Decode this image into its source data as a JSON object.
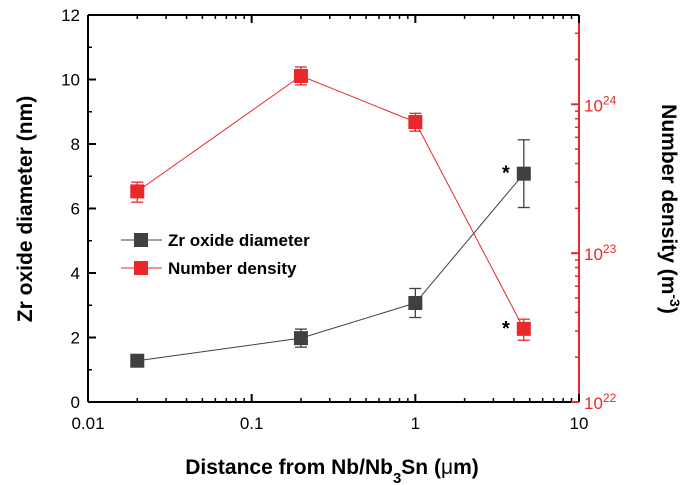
{
  "chart_data": {
    "type": "line",
    "xlabel_parts": [
      "Distance from Nb/Nb",
      "3",
      "Sn (",
      "μ",
      "m)"
    ],
    "ylabel_left": "Zr oxide diameter (nm)",
    "ylabel_right_parts": [
      "Number density (m",
      "-3",
      ")"
    ],
    "x_scale": "log",
    "xlim": [
      0.01,
      10
    ],
    "x_ticks": [
      {
        "value": 0.01,
        "label": "0.01"
      },
      {
        "value": 0.1,
        "label": "0.1"
      },
      {
        "value": 1,
        "label": "1"
      },
      {
        "value": 10,
        "label": "10"
      }
    ],
    "ylim_left": [
      0,
      12
    ],
    "y_left_ticks": [
      {
        "value": 0,
        "label": "0"
      },
      {
        "value": 2,
        "label": "2"
      },
      {
        "value": 4,
        "label": "4"
      },
      {
        "value": 6,
        "label": "6"
      },
      {
        "value": 8,
        "label": "8"
      },
      {
        "value": 10,
        "label": "10"
      },
      {
        "value": 12,
        "label": "12"
      }
    ],
    "y_right_scale": "log",
    "ylim_right": [
      1e+22,
      3.98e+24
    ],
    "y_right_ticks": [
      {
        "value": 1e+22,
        "base": "10",
        "exp": "22"
      },
      {
        "value": 1e+23,
        "base": "10",
        "exp": "23"
      },
      {
        "value": 1e+24,
        "base": "10",
        "exp": "24"
      }
    ],
    "series": [
      {
        "name": "Zr oxide diameter",
        "axis": "left",
        "color": "#404040",
        "x": [
          0.02,
          0.2,
          1.0,
          4.6
        ],
        "y": [
          1.28,
          1.98,
          3.07,
          7.08
        ],
        "err": [
          0.15,
          0.28,
          0.45,
          1.05
        ]
      },
      {
        "name": "Number density",
        "axis": "right",
        "color": "#e8282b",
        "x": [
          0.02,
          0.2,
          1.0,
          4.6
        ],
        "y": [
          2.6e+23,
          1.55e+24,
          7.6e+23,
          3.1e+22
        ],
        "err": [
          [
            2.2e+23,
            3e+23
          ],
          [
            1.35e+24,
            1.78e+24
          ],
          [
            6.6e+23,
            8.7e+23
          ],
          [
            2.6e+22,
            3.6e+22
          ]
        ]
      }
    ],
    "annotations": [
      {
        "text": "*",
        "series": 0,
        "point": 3
      },
      {
        "text": "*",
        "series": 1,
        "point": 3
      }
    ],
    "legend_position": "center-left",
    "grid": false
  },
  "colors": {
    "axis": "#000000",
    "right_axis": "#e8282b"
  }
}
